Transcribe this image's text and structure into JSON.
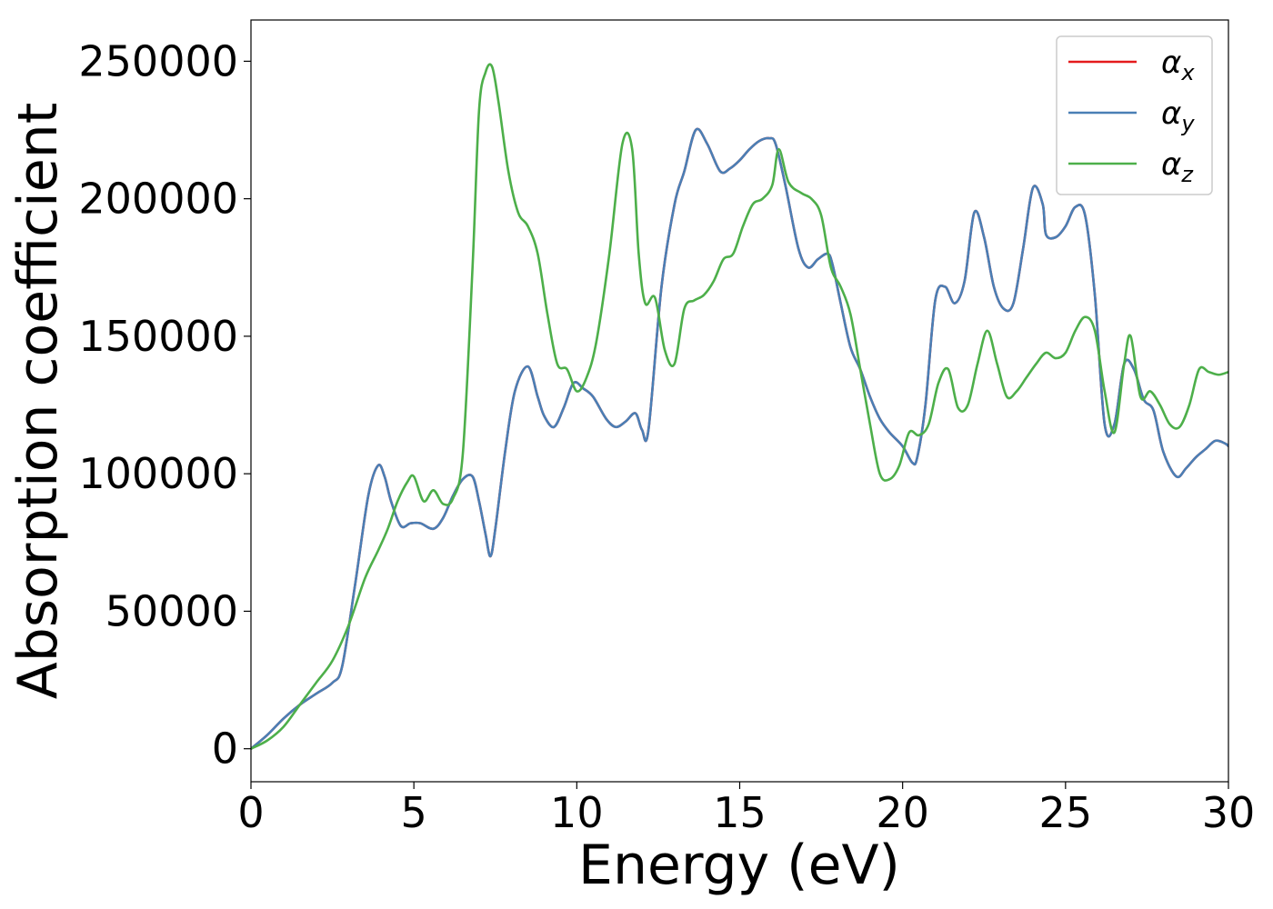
{
  "chart_data": {
    "type": "line",
    "title": "",
    "xlabel": "Energy (eV)",
    "ylabel": "Absorption coefficient",
    "xlim": [
      0,
      30
    ],
    "ylim": [
      -12000,
      265000
    ],
    "xticks": [
      0,
      5,
      10,
      15,
      20,
      25,
      30
    ],
    "xtick_labels": [
      "0",
      "5",
      "10",
      "15",
      "20",
      "25",
      "30"
    ],
    "yticks": [
      0,
      50000,
      100000,
      150000,
      200000,
      250000
    ],
    "ytick_labels": [
      "0",
      "50000",
      "100000",
      "150000",
      "200000",
      "250000"
    ],
    "grid": false,
    "legend_position": "top-right",
    "series": [
      {
        "name": "α_x",
        "legend_base": "α",
        "legend_sub": "x",
        "color": "#e41a1c",
        "x": [
          0,
          0.5,
          1,
          1.5,
          2,
          2.5,
          2.8,
          3.2,
          3.6,
          3.9,
          4.1,
          4.3,
          4.6,
          4.9,
          5.2,
          5.6,
          5.9,
          6.2,
          6.5,
          6.8,
          7.0,
          7.2,
          7.35,
          7.5,
          7.8,
          8.1,
          8.5,
          8.8,
          9.0,
          9.3,
          9.6,
          9.9,
          10.2,
          10.5,
          10.9,
          11.2,
          11.5,
          11.8,
          12.0,
          12.2,
          12.6,
          13.0,
          13.3,
          13.65,
          14.0,
          14.4,
          14.7,
          15.0,
          15.3,
          15.6,
          15.9,
          16.1,
          16.4,
          16.8,
          17.1,
          17.4,
          17.7,
          17.85,
          18.1,
          18.4,
          18.7,
          19.0,
          19.3,
          19.6,
          20.0,
          20.3,
          20.45,
          20.7,
          21.0,
          21.3,
          21.6,
          21.9,
          22.2,
          22.5,
          22.8,
          23.1,
          23.4,
          23.7,
          24.0,
          24.3,
          24.4,
          24.7,
          25.0,
          25.3,
          25.6,
          25.9,
          26.2,
          26.5,
          26.8,
          27.1,
          27.4,
          27.7,
          28.0,
          28.4,
          28.7,
          29.0,
          29.3,
          29.6,
          29.9,
          30.0
        ],
        "values": [
          0,
          5000,
          11000,
          16000,
          20000,
          24000,
          30000,
          60000,
          92000,
          103000,
          99000,
          90000,
          81000,
          82000,
          82000,
          80000,
          84000,
          92000,
          98000,
          99000,
          90000,
          78000,
          70000,
          80000,
          108000,
          130000,
          139000,
          128000,
          121000,
          117000,
          124000,
          133000,
          131000,
          128000,
          120000,
          117000,
          119000,
          122000,
          116000,
          116000,
          168000,
          198000,
          210000,
          225000,
          220000,
          210000,
          211000,
          214000,
          218000,
          221000,
          222000,
          220000,
          205000,
          182000,
          175000,
          178000,
          180000,
          176000,
          162000,
          146000,
          138000,
          128000,
          120000,
          115000,
          110000,
          104000,
          106000,
          125000,
          163000,
          168000,
          162000,
          170000,
          195000,
          186000,
          168000,
          160000,
          162000,
          182000,
          204000,
          198000,
          187000,
          186000,
          190000,
          197000,
          194000,
          165000,
          118000,
          118000,
          140000,
          138000,
          127000,
          123000,
          108000,
          99000,
          102000,
          106000,
          109000,
          112000,
          111000,
          110000
        ]
      },
      {
        "name": "α_y",
        "legend_base": "α",
        "legend_sub": "y",
        "color": "#4a7fb5",
        "x": [
          0,
          0.5,
          1,
          1.5,
          2,
          2.5,
          2.8,
          3.2,
          3.6,
          3.9,
          4.1,
          4.3,
          4.6,
          4.9,
          5.2,
          5.6,
          5.9,
          6.2,
          6.5,
          6.8,
          7.0,
          7.2,
          7.35,
          7.5,
          7.8,
          8.1,
          8.5,
          8.8,
          9.0,
          9.3,
          9.6,
          9.9,
          10.2,
          10.5,
          10.9,
          11.2,
          11.5,
          11.8,
          12.0,
          12.2,
          12.6,
          13.0,
          13.3,
          13.65,
          14.0,
          14.4,
          14.7,
          15.0,
          15.3,
          15.6,
          15.9,
          16.1,
          16.4,
          16.8,
          17.1,
          17.4,
          17.7,
          17.85,
          18.1,
          18.4,
          18.7,
          19.0,
          19.3,
          19.6,
          20.0,
          20.3,
          20.45,
          20.7,
          21.0,
          21.3,
          21.6,
          21.9,
          22.2,
          22.5,
          22.8,
          23.1,
          23.4,
          23.7,
          24.0,
          24.3,
          24.4,
          24.7,
          25.0,
          25.3,
          25.6,
          25.9,
          26.2,
          26.5,
          26.8,
          27.1,
          27.4,
          27.7,
          28.0,
          28.4,
          28.7,
          29.0,
          29.3,
          29.6,
          29.9,
          30.0
        ],
        "values": [
          0,
          5000,
          11000,
          16000,
          20000,
          24000,
          30000,
          60000,
          92000,
          103000,
          99000,
          90000,
          81000,
          82000,
          82000,
          80000,
          84000,
          92000,
          98000,
          99000,
          90000,
          78000,
          70000,
          80000,
          108000,
          130000,
          139000,
          128000,
          121000,
          117000,
          124000,
          133000,
          131000,
          128000,
          120000,
          117000,
          119000,
          122000,
          116000,
          116000,
          168000,
          198000,
          210000,
          225000,
          220000,
          210000,
          211000,
          214000,
          218000,
          221000,
          222000,
          220000,
          205000,
          182000,
          175000,
          178000,
          180000,
          176000,
          162000,
          146000,
          138000,
          128000,
          120000,
          115000,
          110000,
          104000,
          106000,
          125000,
          163000,
          168000,
          162000,
          170000,
          195000,
          186000,
          168000,
          160000,
          162000,
          182000,
          204000,
          198000,
          187000,
          186000,
          190000,
          197000,
          194000,
          165000,
          118000,
          118000,
          140000,
          138000,
          127000,
          123000,
          108000,
          99000,
          102000,
          106000,
          109000,
          112000,
          111000,
          110000
        ]
      },
      {
        "name": "α_z",
        "legend_base": "α",
        "legend_sub": "z",
        "color": "#4daf4a",
        "x": [
          0,
          0.5,
          1,
          1.5,
          2,
          2.5,
          3.0,
          3.5,
          3.9,
          4.2,
          4.5,
          4.8,
          5.0,
          5.3,
          5.6,
          5.9,
          6.2,
          6.5,
          6.8,
          7.0,
          7.2,
          7.4,
          7.6,
          7.9,
          8.2,
          8.5,
          8.8,
          9.1,
          9.4,
          9.7,
          10.0,
          10.3,
          10.6,
          11.0,
          11.4,
          11.7,
          11.9,
          12.1,
          12.4,
          12.7,
          13.0,
          13.3,
          13.6,
          13.9,
          14.2,
          14.5,
          14.8,
          15.1,
          15.4,
          15.7,
          16.0,
          16.2,
          16.5,
          16.9,
          17.2,
          17.5,
          17.8,
          18.1,
          18.4,
          18.7,
          19.0,
          19.3,
          19.6,
          19.9,
          20.2,
          20.5,
          20.8,
          21.1,
          21.4,
          21.7,
          22.0,
          22.3,
          22.6,
          22.9,
          23.2,
          23.5,
          23.8,
          24.1,
          24.4,
          24.7,
          25.0,
          25.3,
          25.6,
          25.9,
          26.2,
          26.5,
          26.8,
          27.0,
          27.3,
          27.6,
          27.9,
          28.2,
          28.5,
          28.8,
          29.1,
          29.4,
          29.7,
          30.0
        ],
        "values": [
          0,
          3000,
          8000,
          16000,
          24000,
          32000,
          45000,
          62000,
          72000,
          80000,
          90000,
          97000,
          99000,
          90000,
          94000,
          89000,
          91000,
          107000,
          175000,
          232000,
          246000,
          248000,
          235000,
          210000,
          195000,
          190000,
          180000,
          158000,
          140000,
          138000,
          130000,
          135000,
          148000,
          180000,
          220000,
          218000,
          180000,
          162000,
          164000,
          145000,
          140000,
          160000,
          163000,
          165000,
          170000,
          178000,
          180000,
          190000,
          198000,
          200000,
          205000,
          218000,
          206000,
          202000,
          200000,
          194000,
          175000,
          168000,
          158000,
          138000,
          118000,
          100000,
          98000,
          103000,
          115000,
          114000,
          118000,
          133000,
          138000,
          124000,
          125000,
          140000,
          152000,
          140000,
          128000,
          130000,
          135000,
          140000,
          144000,
          142000,
          144000,
          152000,
          157000,
          152000,
          130000,
          115000,
          140000,
          150000,
          128000,
          130000,
          125000,
          118000,
          117000,
          125000,
          138000,
          137000,
          136000,
          137000
        ]
      }
    ]
  }
}
